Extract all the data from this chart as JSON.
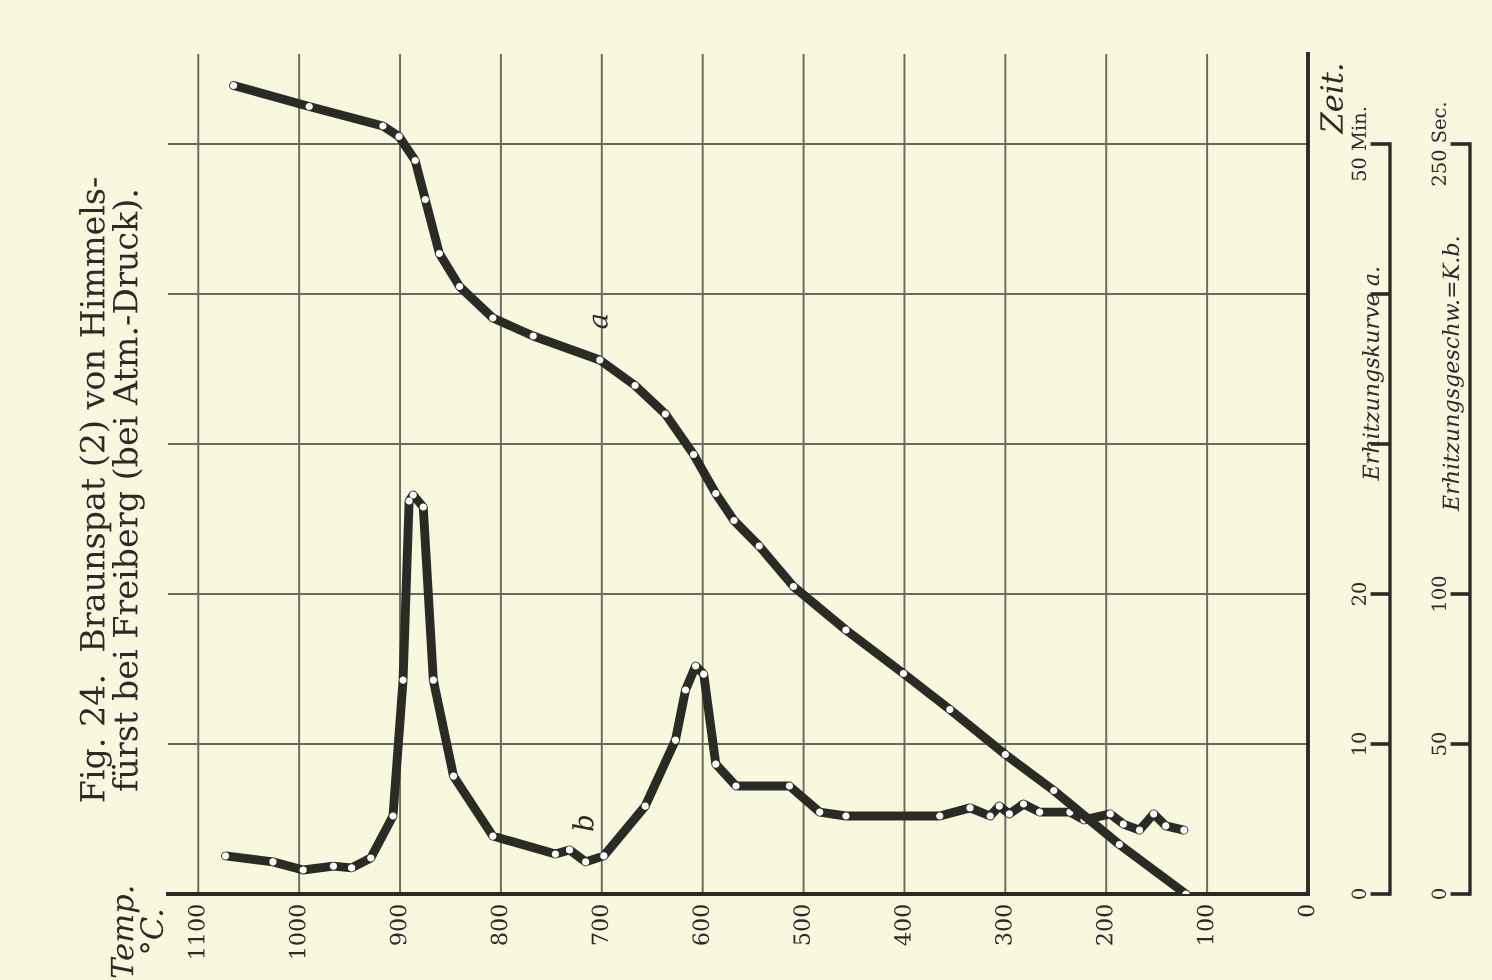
{
  "chart_data": {
    "type": "line",
    "title": "Fig. 24.  Braunspat (2) von Himmels-\nfürst bei Freiberg (bei Atm.-Druck).",
    "ylabel": "Erhitzungskurve a.",
    "y2label": "Erhitzungsgeschw.=K.b.",
    "annotations": [
      "Zeit.",
      "Temp.\n°C."
    ],
    "xlim": [
      1130,
      0
    ],
    "xticks": [
      1100,
      1000,
      900,
      800,
      700,
      600,
      500,
      400,
      300,
      200,
      100,
      0
    ],
    "ylim": [
      0,
      56
    ],
    "yticks": [
      0,
      10,
      20,
      {
        "value": 30,
        "label": null
      },
      {
        "value": 40,
        "label": null
      },
      {
        "value": 50,
        "label": "50 Min."
      }
    ],
    "y2lim": [
      0,
      280
    ],
    "y2ticks": [
      0,
      50,
      100,
      {
        "value": 250,
        "label": "250 Sec."
      }
    ],
    "grid": true,
    "legend": false,
    "marker": "circle",
    "line_style": "solid",
    "series": [
      {
        "name": "a",
        "color": "#2b2b26",
        "x": [
          1065,
          990,
          917,
          901,
          885,
          875,
          861,
          841,
          808,
          768,
          702,
          667,
          637,
          609,
          587,
          569,
          544,
          510,
          458,
          401,
          355,
          300,
          252,
          187,
          121
        ],
        "values": [
          53.9,
          52.5,
          51.2,
          50.5,
          48.9,
          46.3,
          42.7,
          40.5,
          38.4,
          37.2,
          35.6,
          33.9,
          32.0,
          29.3,
          26.7,
          24.9,
          23.2,
          20.5,
          17.6,
          14.7,
          12.3,
          9.3,
          6.9,
          3.3,
          0
        ]
      },
      {
        "name": "b",
        "color": "#2b2b26",
        "axis": "y2",
        "x": [
          1073,
          1026,
          996,
          966,
          948,
          929,
          907,
          897,
          891,
          887,
          877,
          867,
          847,
          808,
          746,
          732,
          716,
          698,
          657,
          627,
          617,
          607,
          599,
          587,
          567,
          514,
          484,
          458,
          365,
          335,
          315,
          306,
          296,
          282,
          266,
          236,
          222,
          196,
          183,
          167,
          153,
          141,
          123
        ],
        "values": [
          12.7,
          10.7,
          8.0,
          9.3,
          8.7,
          12.0,
          26.0,
          71.3,
          131,
          133,
          129,
          71.3,
          39.3,
          19.3,
          13.3,
          14.7,
          10.7,
          12.7,
          29.3,
          51.3,
          68,
          76,
          73.3,
          43.3,
          36,
          36,
          27.3,
          26,
          26,
          28.7,
          26,
          29.3,
          26.7,
          30,
          27.3,
          27.3,
          24.7,
          26.7,
          23.3,
          21.3,
          26.7,
          22.7,
          21.3
        ]
      }
    ]
  }
}
